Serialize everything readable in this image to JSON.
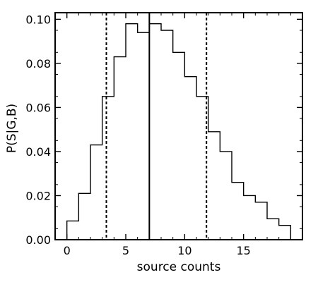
{
  "chart_data": {
    "type": "histogram",
    "title": "",
    "xlabel": "source counts",
    "ylabel": "P(S|G,B)",
    "xlim": [
      -1,
      20
    ],
    "ylim": [
      0,
      0.103
    ],
    "xticks": [
      0,
      5,
      10,
      15
    ],
    "xtick_labels": [
      "0",
      "5",
      "10",
      "15"
    ],
    "yticks": [
      0,
      0.02,
      0.04,
      0.06,
      0.08,
      0.1
    ],
    "ytick_labels": [
      "0.00",
      "0.02",
      "0.04",
      "0.06",
      "0.08",
      "0.10"
    ],
    "grid": false,
    "legend": "none",
    "bin_edges": [
      0,
      1,
      2,
      3,
      4,
      5,
      6,
      7,
      8,
      9,
      10,
      11,
      12,
      13,
      14,
      15,
      16,
      17,
      18,
      19
    ],
    "values": [
      0.0085,
      0.021,
      0.043,
      0.065,
      0.083,
      0.098,
      0.094,
      0.098,
      0.095,
      0.085,
      0.074,
      0.065,
      0.049,
      0.04,
      0.026,
      0.02,
      0.017,
      0.0095,
      0.0065
    ],
    "vertical_lines": [
      {
        "x": 3.35,
        "style": "dashed"
      },
      {
        "x": 7.0,
        "style": "solid"
      },
      {
        "x": 11.85,
        "style": "dashed"
      }
    ],
    "line_color": "#000000"
  }
}
